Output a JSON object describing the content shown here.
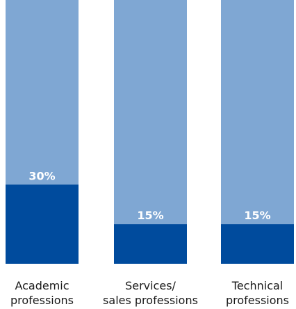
{
  "colors": {
    "track": "#7fa7d3",
    "fill": "#004b9d",
    "value_text": "#ffffff",
    "label_text": "#1a1a1a"
  },
  "chart_data": {
    "type": "bar",
    "stacked": true,
    "orientation": "vertical",
    "categories": [
      [
        "Academic",
        "professions"
      ],
      [
        "Services/",
        "sales professions"
      ],
      [
        "Technical",
        "professions"
      ]
    ],
    "series": [
      {
        "values": [
          30,
          15,
          15
        ]
      }
    ],
    "value_labels": [
      "30%",
      "15%",
      "15%"
    ],
    "ylim": [
      0,
      100
    ],
    "grid": false,
    "legend": "none"
  }
}
